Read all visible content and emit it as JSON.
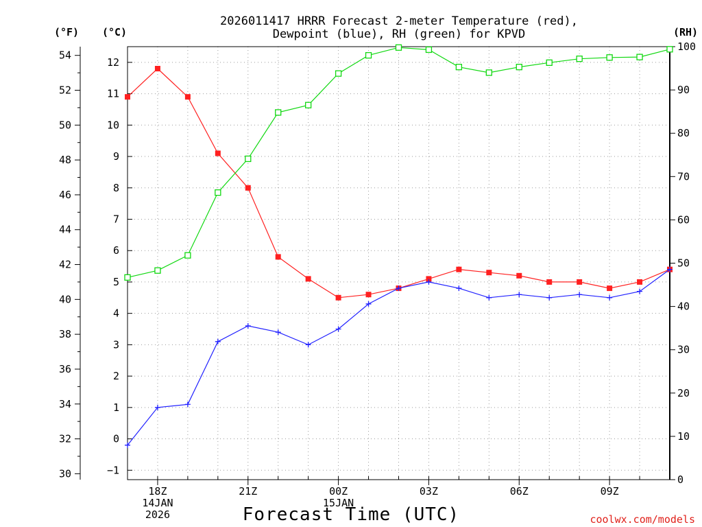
{
  "chart_data": {
    "type": "line",
    "title_lines": [
      "2026011417 HRRR Forecast 2-meter Temperature (red),",
      "Dewpoint (blue), RH (green) for KPVD"
    ],
    "xlabel": "Forecast Time (UTC)",
    "credit": "coolwx.com/models",
    "units": {
      "fahrenheit": "(°F)",
      "celsius": "(°C)",
      "rh": "(RH)"
    },
    "x_hours_utc": [
      17,
      18,
      19,
      20,
      21,
      22,
      23,
      24,
      25,
      26,
      27,
      28,
      29,
      30,
      31,
      32,
      33,
      34,
      35
    ],
    "xlim": [
      17,
      35
    ],
    "x_ticks": [
      {
        "hour": 18,
        "lines": [
          "18Z",
          "14JAN",
          "2026"
        ]
      },
      {
        "hour": 21,
        "lines": [
          "21Z"
        ]
      },
      {
        "hour": 24,
        "lines": [
          "00Z",
          "15JAN"
        ]
      },
      {
        "hour": 27,
        "lines": [
          "03Z"
        ]
      },
      {
        "hour": 30,
        "lines": [
          "06Z"
        ]
      },
      {
        "hour": 33,
        "lines": [
          "09Z"
        ]
      }
    ],
    "axes": {
      "celsius": {
        "lim": [
          -1.3,
          12.5
        ],
        "ticks": [
          -1,
          0,
          1,
          2,
          3,
          4,
          5,
          6,
          7,
          8,
          9,
          10,
          11,
          12
        ]
      },
      "fahrenheit": {
        "ticks": [
          30,
          32,
          34,
          36,
          38,
          40,
          42,
          44,
          46,
          48,
          50,
          52,
          54
        ]
      },
      "rh": {
        "lim": [
          0,
          100
        ],
        "ticks": [
          0,
          10,
          20,
          30,
          40,
          50,
          60,
          70,
          80,
          90,
          100
        ]
      }
    },
    "grid": true,
    "series": [
      {
        "name": "Temperature",
        "axis": "celsius",
        "color": "#ff2020",
        "marker": "filled-square",
        "values": [
          10.9,
          11.8,
          10.9,
          9.1,
          8.0,
          5.8,
          5.1,
          4.5,
          4.6,
          4.8,
          5.1,
          5.4,
          5.3,
          5.2,
          5.0,
          5.0,
          4.8,
          5.0,
          5.4
        ]
      },
      {
        "name": "Dewpoint",
        "axis": "celsius",
        "color": "#2020ff",
        "marker": "plus",
        "values": [
          -0.2,
          1.0,
          1.1,
          3.1,
          3.6,
          3.4,
          3.0,
          3.5,
          4.3,
          4.8,
          5.0,
          4.8,
          4.5,
          4.6,
          4.5,
          4.6,
          4.5,
          4.7,
          5.4
        ]
      },
      {
        "name": "RH",
        "axis": "rh",
        "color": "#10d810",
        "marker": "open-square",
        "values": [
          46.7,
          48.3,
          51.8,
          66.3,
          74.1,
          84.8,
          86.5,
          93.8,
          98.0,
          99.8,
          99.3,
          95.3,
          94.0,
          95.3,
          96.3,
          97.2,
          97.5,
          97.6,
          99.4
        ]
      }
    ]
  }
}
